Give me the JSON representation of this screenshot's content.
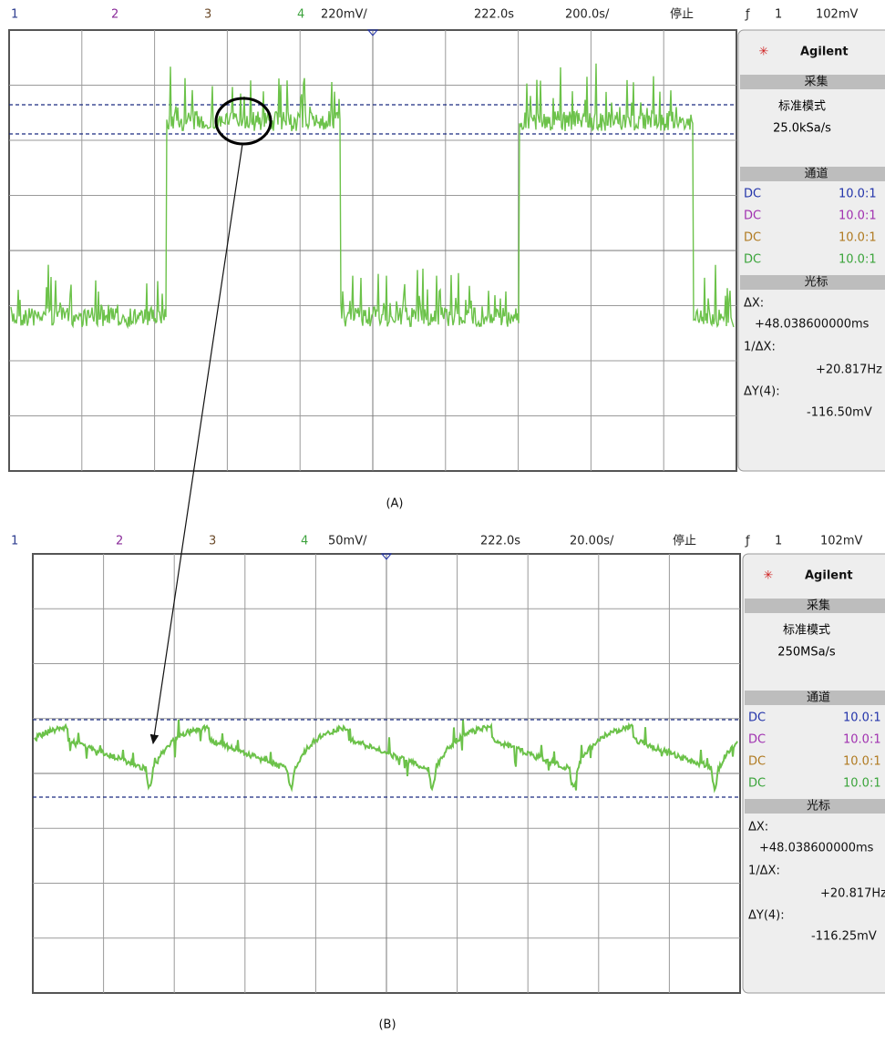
{
  "panels": [
    {
      "label": "(A)",
      "header": {
        "channels": [
          "1",
          "2",
          "3",
          "4"
        ],
        "scale": "220mV/",
        "delay": "222.0s",
        "timebase": "200.0s/",
        "status": "停止",
        "trigger_symbol": "ƒ",
        "trigger_channel": "1",
        "trigger_level": "102mV"
      },
      "side": {
        "brand": "Agilent",
        "acquire_title": "采集",
        "mode": "标准模式",
        "rate": "25.0kSa/s",
        "channel_title": "通道",
        "channels": [
          {
            "coupling": "DC",
            "probe": "10.0:1"
          },
          {
            "coupling": "DC",
            "probe": "10.0:1"
          },
          {
            "coupling": "DC",
            "probe": "10.0:1"
          },
          {
            "coupling": "DC",
            "probe": "10.0:1"
          }
        ],
        "cursor_title": "光标",
        "dx_label": "ΔX:",
        "dx": "+48.038600000ms",
        "inv_label": "1/ΔX:",
        "inv": "+20.817Hz",
        "dy_label": "ΔY(4):",
        "dy": "-116.50mV"
      }
    },
    {
      "label": "(B)",
      "header": {
        "channels": [
          "1",
          "2",
          "3",
          "4"
        ],
        "scale": "50mV/",
        "delay": "222.0s",
        "timebase": "20.00s/",
        "status": "停止",
        "trigger_symbol": "ƒ",
        "trigger_channel": "1",
        "trigger_level": "102mV"
      },
      "side": {
        "brand": "Agilent",
        "acquire_title": "采集",
        "mode": "标准模式",
        "rate": "250MSa/s",
        "channel_title": "通道",
        "channels": [
          {
            "coupling": "DC",
            "probe": "10.0:1"
          },
          {
            "coupling": "DC",
            "probe": "10.0:1"
          },
          {
            "coupling": "DC",
            "probe": "10.0:1"
          },
          {
            "coupling": "DC",
            "probe": "10.0:1"
          }
        ],
        "cursor_title": "光标",
        "dx_label": "ΔX:",
        "dx": "+48.038600000ms",
        "inv_label": "1/ΔX:",
        "inv": "+20.817Hz",
        "dy_label": "ΔY(4):",
        "dy": "-116.25mV"
      }
    }
  ]
}
